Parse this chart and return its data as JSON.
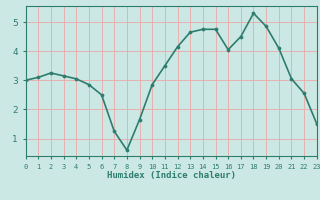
{
  "x": [
    0,
    1,
    2,
    3,
    4,
    5,
    6,
    7,
    8,
    9,
    10,
    11,
    12,
    13,
    14,
    15,
    16,
    17,
    18,
    19,
    20,
    21,
    22,
    23
  ],
  "y": [
    3.0,
    3.1,
    3.25,
    3.15,
    3.05,
    2.85,
    2.5,
    1.25,
    0.6,
    1.65,
    2.85,
    3.5,
    4.15,
    4.65,
    4.75,
    4.75,
    4.05,
    4.5,
    5.3,
    4.85,
    4.1,
    3.05,
    2.55,
    1.5
  ],
  "xlabel": "Humidex (Indice chaleur)",
  "xlim": [
    0,
    23
  ],
  "ylim": [
    0.4,
    5.55
  ],
  "yticks": [
    1,
    2,
    3,
    4,
    5
  ],
  "xticks": [
    0,
    1,
    2,
    3,
    4,
    5,
    6,
    7,
    8,
    9,
    10,
    11,
    12,
    13,
    14,
    15,
    16,
    17,
    18,
    19,
    20,
    21,
    22,
    23
  ],
  "line_color": "#2d7d6e",
  "marker": "o",
  "markersize": 2.2,
  "bg_color": "#cce8e4",
  "grid_color": "#e8a8a8",
  "axes_color": "#2d7d6e",
  "tick_label_color": "#2d7d6e",
  "xlabel_color": "#2d7d6e",
  "linewidth": 1.2
}
